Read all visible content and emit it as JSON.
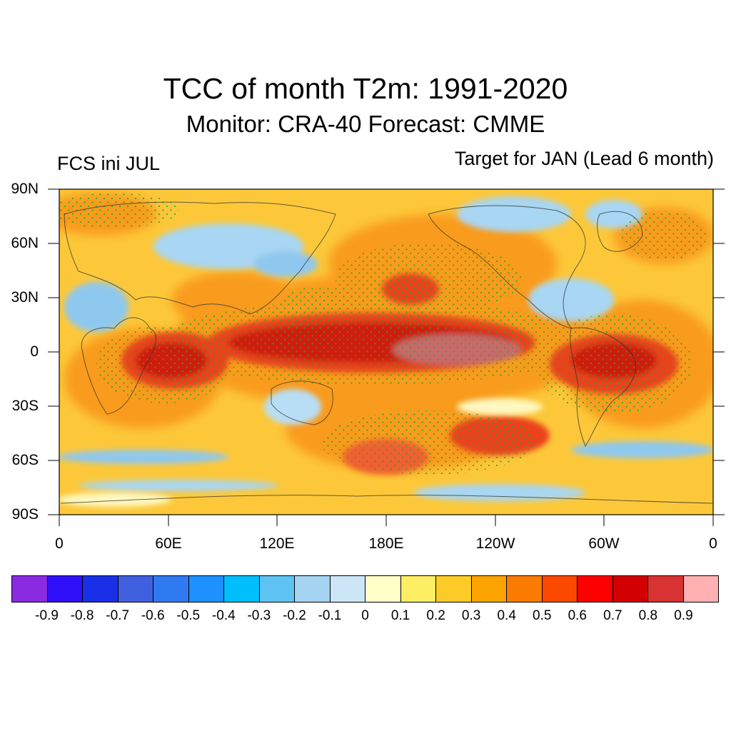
{
  "title": "TCC of month T2m: 1991-2020",
  "subtitle": "Monitor: CRA-40   Forecast: CMME",
  "left_label": "FCS ini JUL",
  "right_label": "Target for JAN (Lead 6 month)",
  "lat_labels": [
    "90N",
    "60N",
    "30N",
    "0",
    "30S",
    "60S",
    "90S"
  ],
  "lon_labels": [
    "0",
    "60E",
    "120E",
    "180E",
    "120W",
    "60W",
    "0"
  ],
  "colorbar": {
    "colors": [
      "#8a2be2",
      "#3010f8",
      "#1a30e8",
      "#4060e0",
      "#2f7af0",
      "#1e90ff",
      "#00bfff",
      "#5ec3f2",
      "#a4d4f0",
      "#cce6f7",
      "#ffffc8",
      "#fdee64",
      "#fccb28",
      "#fca500",
      "#fb7b00",
      "#fb4a00",
      "#fe0000",
      "#d20000",
      "#d93232",
      "#ffb0b0"
    ],
    "labels": [
      "-0.9",
      "-0.8",
      "-0.7",
      "-0.6",
      "-0.5",
      "-0.4",
      "-0.3",
      "-0.2",
      "-0.1",
      "0",
      "0.1",
      "0.2",
      "0.3",
      "0.4",
      "0.5",
      "0.6",
      "0.7",
      "0.8",
      "0.9"
    ]
  },
  "stipple_color": "#22aa22"
}
